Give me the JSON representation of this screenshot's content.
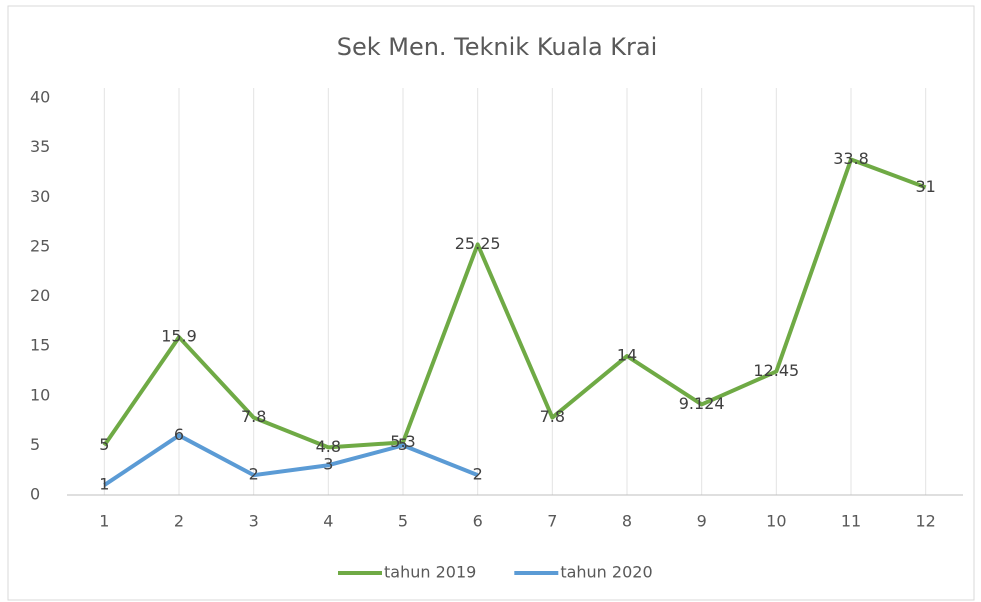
{
  "chart_data": {
    "type": "line",
    "title": "Sek Men. Teknik Kuala Krai",
    "categories": [
      "1",
      "2",
      "3",
      "4",
      "5",
      "6",
      "7",
      "8",
      "9",
      "10",
      "11",
      "12"
    ],
    "series": [
      {
        "name": "tahun 2019",
        "color": "#6faa45",
        "values": [
          5,
          15.9,
          7.8,
          4.8,
          5.3,
          25.25,
          7.8,
          14,
          9.124,
          12.45,
          33.8,
          31
        ]
      },
      {
        "name": "tahun 2020",
        "color": "#5b9bd5",
        "values": [
          1,
          6,
          2,
          3,
          5,
          2,
          null,
          null,
          null,
          null,
          null,
          null
        ]
      }
    ],
    "ylim": [
      0,
      40
    ],
    "yticks": [
      0,
      5,
      10,
      15,
      20,
      25,
      30,
      35,
      40
    ],
    "grid": false,
    "legend": "bottom"
  }
}
